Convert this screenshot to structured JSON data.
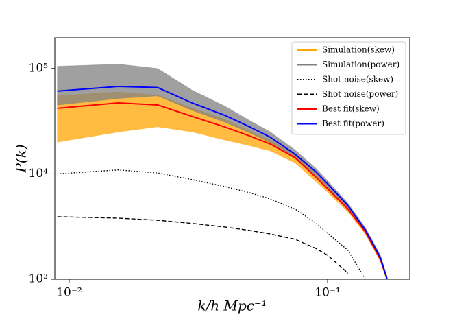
{
  "chart_data": {
    "type": "line",
    "xlabel": "k/h Mpc⁻¹",
    "ylabel": "P(k)",
    "xscale": "log",
    "yscale": "log",
    "x": [
      0.009,
      0.0155,
      0.022,
      0.03,
      0.04,
      0.05,
      0.06,
      0.075,
      0.09,
      0.1,
      0.12,
      0.14,
      0.16,
      0.17
    ],
    "xlim": [
      0.0088,
      0.208
    ],
    "ylim": [
      1000,
      196000
    ],
    "xticks": [
      {
        "value": 0.01,
        "label": "10⁻²"
      },
      {
        "value": 0.1,
        "label": "10⁻¹"
      }
    ],
    "yticks": [
      {
        "value": 1000,
        "label": "10³"
      },
      {
        "value": 10000,
        "label": "10⁴"
      },
      {
        "value": 100000,
        "label": "10⁵"
      }
    ],
    "legend": "upper right",
    "series": [
      {
        "name": "Simulation(skew)",
        "color": "#ffa500",
        "style": "band",
        "upper": [
          55000,
          60000,
          56000,
          42000,
          33000,
          25500,
          21000,
          15200,
          10000,
          7700,
          4850,
          2950,
          1620,
          1050
        ],
        "lower": [
          20000,
          25000,
          28000,
          25000,
          21000,
          18500,
          16500,
          12700,
          8500,
          6700,
          4350,
          2680,
          1470,
          950
        ]
      },
      {
        "name": "Simulation(power)",
        "color": "#808080",
        "style": "band",
        "upper": [
          105000,
          110000,
          100000,
          62000,
          44000,
          32000,
          25000,
          16800,
          11300,
          8600,
          5250,
          3080,
          1700,
          1050
        ],
        "lower": [
          45000,
          52000,
          55000,
          40000,
          31000,
          24500,
          19800,
          13900,
          9700,
          7500,
          4700,
          2800,
          1520,
          950
        ]
      },
      {
        "name": "Shot noise(skew)",
        "color": "#000000",
        "style": "dotted",
        "values": [
          10000,
          10900,
          10200,
          8810,
          7580,
          6610,
          5780,
          4620,
          3420,
          2730,
          1880,
          1000,
          null,
          null
        ]
      },
      {
        "name": "Shot noise(power)",
        "color": "#000000",
        "style": "dashed",
        "values": [
          3920,
          3800,
          3630,
          3380,
          3130,
          2900,
          2690,
          2390,
          1960,
          1690,
          1140,
          null,
          null,
          null
        ]
      },
      {
        "name": "Best fit(skew)",
        "color": "#ff0000",
        "style": "solid",
        "values": [
          41900,
          47200,
          45100,
          35000,
          27900,
          22900,
          19200,
          14200,
          9330,
          7240,
          4620,
          2820,
          1550,
          1000
        ]
      },
      {
        "name": "Best fit(power)",
        "color": "#0000ff",
        "style": "solid",
        "values": [
          61000,
          67600,
          66000,
          47000,
          36000,
          27900,
          22300,
          15300,
          10500,
          8050,
          4980,
          2940,
          1610,
          1000
        ]
      }
    ]
  }
}
